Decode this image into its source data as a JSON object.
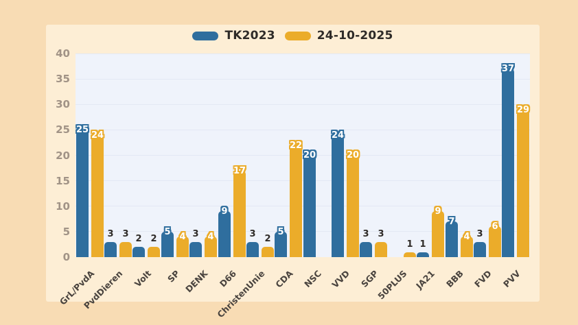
{
  "legend": {
    "items": [
      {
        "label": "TK2023",
        "color": "#2f6e9e"
      },
      {
        "label": "24-10-2025",
        "color": "#ebac2a"
      }
    ]
  },
  "colors": {
    "outer_background": "#f8dcb4",
    "panel_background": "#fdeed5",
    "plot_background": "#eff3fb",
    "gridline": "#e3e8f4",
    "ytick_text": "#a19386",
    "xlabel_text": "#4a443f",
    "bar_label_inside": "#ffffff",
    "bar_label_above": "#2f2b28",
    "series_blue": "#2f6e9e",
    "series_orange": "#ebac2a"
  },
  "chart_data": {
    "type": "bar",
    "title": "",
    "xlabel": "",
    "ylabel": "",
    "categories": [
      "GrL/PvdA",
      "PvdDieren",
      "Volt",
      "SP",
      "DENK",
      "D66",
      "ChristenUnie",
      "CDA",
      "NSC",
      "VVD",
      "SGP",
      "50PLUS",
      "JA21",
      "BBB",
      "FVD",
      "PVV"
    ],
    "series": [
      {
        "name": "TK2023",
        "color": "#2f6e9e",
        "values": [
          25,
          3,
          2,
          5,
          3,
          9,
          3,
          5,
          20,
          24,
          3,
          0,
          1,
          7,
          3,
          37
        ]
      },
      {
        "name": "24-10-2025",
        "color": "#ebac2a",
        "values": [
          24,
          3,
          2,
          4,
          4,
          17,
          2,
          22,
          0,
          20,
          3,
          1,
          9,
          4,
          6,
          29
        ]
      }
    ],
    "ylim": [
      0,
      40
    ],
    "yticks": [
      0,
      5,
      10,
      15,
      20,
      25,
      30,
      35,
      40
    ],
    "grid": true,
    "legend_position": "top",
    "bar_label_rule": "values >= 4 shown white inside bar top, values 1-3 shown dark above bar, 0 hidden"
  }
}
